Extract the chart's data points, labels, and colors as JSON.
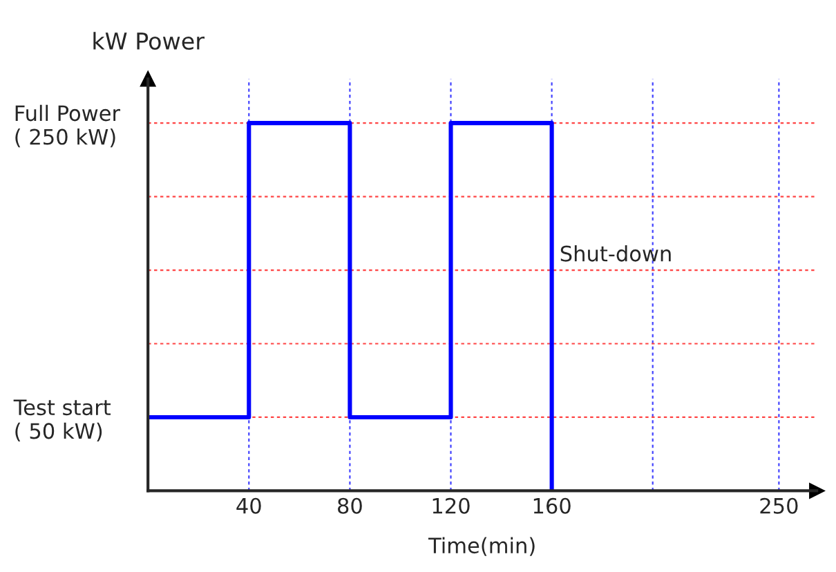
{
  "chart_data": {
    "type": "line",
    "xlabel": "Time(min)",
    "ylabel": "kW Power",
    "x": [
      0,
      40,
      40,
      80,
      80,
      120,
      120,
      160,
      160
    ],
    "series": [
      {
        "color": "#0000ff",
        "values": [
          50,
          50,
          250,
          250,
          50,
          50,
          250,
          250,
          0
        ]
      }
    ],
    "xlim": [
      0,
      265
    ],
    "ylim": [
      0,
      280
    ],
    "xticks": [
      40,
      80,
      120,
      160,
      {
        "value": 200,
        "label": null
      },
      250
    ],
    "yticks": [
      {
        "value": 50,
        "label": "Test start\n( 50 kW)"
      },
      {
        "value": 100,
        "label": null
      },
      {
        "value": 150,
        "label": null
      },
      {
        "value": 200,
        "label": null
      },
      {
        "value": 250,
        "label": "Full Power\n( 250 kW)"
      }
    ],
    "grid": true,
    "annotations": [
      {
        "text": "Shut-down",
        "x": 160,
        "y": 160
      }
    ]
  }
}
